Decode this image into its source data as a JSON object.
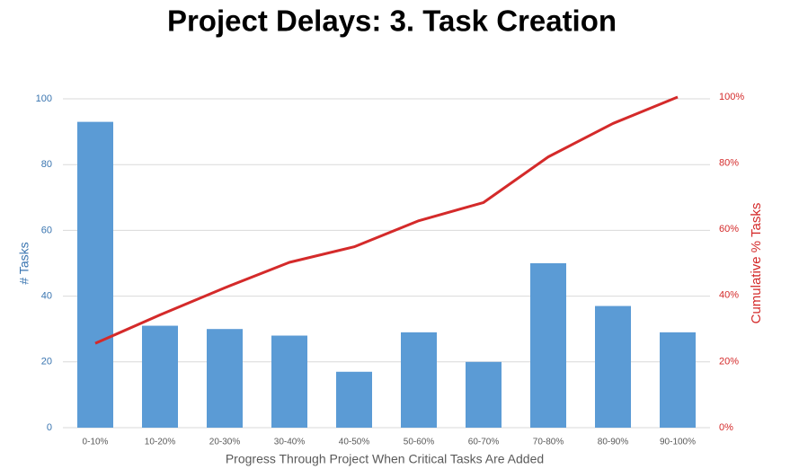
{
  "chart_data": {
    "type": "combo",
    "title": "Project Delays: 3. Task Creation",
    "x_label": "Progress Through Project When Critical Tasks Are Added",
    "y_label": "# Tasks",
    "y2_label": "Cumulative % Tasks",
    "categories": [
      "0-10%",
      "10-20%",
      "20-30%",
      "30-40%",
      "40-50%",
      "50-60%",
      "60-70%",
      "70-80%",
      "80-90%",
      "90-100%"
    ],
    "series": [
      {
        "type": "bar",
        "color": "#5b9bd5",
        "axis": "y",
        "values": [
          93,
          31,
          30,
          28,
          17,
          29,
          20,
          50,
          37,
          29
        ]
      },
      {
        "type": "line",
        "color": "#d42a2a",
        "axis": "y2",
        "values": [
          25.5,
          34.1,
          42.3,
          50,
          54.7,
          62.6,
          68.1,
          81.9,
          92,
          100
        ]
      }
    ],
    "ylim": [
      0,
      100
    ],
    "yticks": [
      0,
      20,
      40,
      60,
      80,
      100
    ],
    "y2lim": [
      0,
      100
    ],
    "y2ticks": [
      {
        "value": 0,
        "label": "0%"
      },
      {
        "value": 20,
        "label": "20%"
      },
      {
        "value": 40,
        "label": "40%"
      },
      {
        "value": 60,
        "label": "60%"
      },
      {
        "value": 80,
        "label": "80%"
      },
      {
        "value": 100,
        "label": "100%"
      }
    ],
    "grid": true
  }
}
